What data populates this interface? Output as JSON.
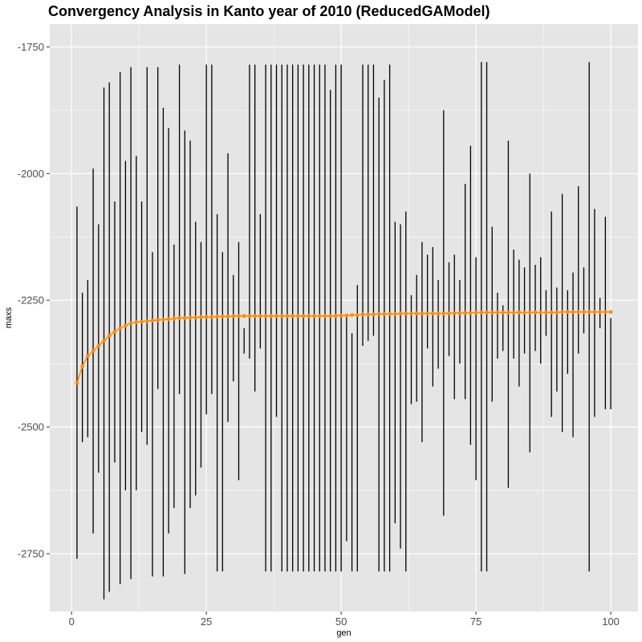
{
  "chart_data": {
    "type": "line",
    "title": "Convergency Analysis in  Kanto year of 2010 (ReducedGAModel)",
    "xlabel": "gen",
    "ylabel": "maxs",
    "xlim": [
      -4.05,
      105.05
    ],
    "ylim": [
      -2864,
      -1705
    ],
    "x_ticks": [
      0,
      25,
      50,
      75,
      100
    ],
    "y_ticks": [
      -1750,
      -2000,
      -2250,
      -2500,
      -2750
    ],
    "grid": true,
    "legend": "none",
    "colors": {
      "panel_background": "#e5e5e5",
      "grid": "#ffffff",
      "line": "#ff8c00",
      "error_bar": "#000000"
    },
    "gen": [
      1,
      2,
      3,
      4,
      5,
      6,
      7,
      8,
      9,
      10,
      11,
      12,
      13,
      14,
      15,
      16,
      17,
      18,
      19,
      20,
      21,
      22,
      23,
      24,
      25,
      26,
      27,
      28,
      29,
      30,
      31,
      32,
      33,
      34,
      35,
      36,
      37,
      38,
      39,
      40,
      41,
      42,
      43,
      44,
      45,
      46,
      47,
      48,
      49,
      50,
      51,
      52,
      53,
      54,
      55,
      56,
      57,
      58,
      59,
      60,
      61,
      62,
      63,
      64,
      65,
      66,
      67,
      68,
      69,
      70,
      71,
      72,
      73,
      74,
      75,
      76,
      77,
      78,
      79,
      80,
      81,
      82,
      83,
      84,
      85,
      86,
      87,
      88,
      89,
      90,
      91,
      92,
      93,
      94,
      95,
      96,
      97,
      98,
      99,
      100
    ],
    "mean": [
      -2413,
      -2380,
      -2360,
      -2350,
      -2340,
      -2330,
      -2320,
      -2312,
      -2305,
      -2300,
      -2295,
      -2293,
      -2292,
      -2291,
      -2290,
      -2289,
      -2288,
      -2287,
      -2286,
      -2285,
      -2285,
      -2284,
      -2284,
      -2283,
      -2283,
      -2283,
      -2282,
      -2282,
      -2282,
      -2281,
      -2281,
      -2281,
      -2281,
      -2281,
      -2281,
      -2281,
      -2281,
      -2281,
      -2281,
      -2281,
      -2281,
      -2281,
      -2281,
      -2281,
      -2281,
      -2281,
      -2281,
      -2281,
      -2281,
      -2280,
      -2280,
      -2279,
      -2279,
      -2278,
      -2278,
      -2278,
      -2277,
      -2277,
      -2277,
      -2277,
      -2276,
      -2276,
      -2276,
      -2276,
      -2276,
      -2276,
      -2276,
      -2276,
      -2276,
      -2276,
      -2275,
      -2275,
      -2275,
      -2275,
      -2274,
      -2274,
      -2274,
      -2274,
      -2274,
      -2274,
      -2274,
      -2274,
      -2274,
      -2274,
      -2274,
      -2274,
      -2274,
      -2274,
      -2274,
      -2274,
      -2273,
      -2273,
      -2273,
      -2273,
      -2273,
      -2273,
      -2273,
      -2273,
      -2273,
      -2273
    ],
    "max": [
      -2065,
      -2235,
      -2210,
      -1990,
      -2100,
      -1830,
      -1820,
      -2055,
      -1800,
      -1975,
      -1790,
      -1965,
      -2055,
      -1790,
      -2155,
      -1790,
      -1870,
      -1910,
      -2140,
      -1785,
      -1915,
      -1935,
      -2095,
      -2135,
      -1785,
      -1785,
      -2080,
      -2155,
      -1960,
      -2200,
      -2135,
      -2305,
      -1785,
      -1785,
      -2080,
      -1785,
      -1785,
      -1785,
      -1785,
      -1785,
      -1785,
      -1785,
      -1785,
      -1785,
      -1785,
      -1785,
      -1785,
      -1835,
      -1785,
      -1785,
      -2280,
      -2315,
      -2220,
      -1785,
      -1785,
      -1785,
      -1850,
      -1815,
      -1785,
      -2095,
      -2100,
      -2075,
      -2240,
      -2200,
      -2135,
      -2160,
      -2145,
      -2210,
      -1875,
      -2175,
      -2160,
      -2210,
      -2020,
      -1945,
      -2165,
      -1780,
      -1780,
      -2105,
      -2235,
      -2260,
      -1935,
      -2150,
      -2170,
      -2185,
      -2000,
      -2180,
      -2165,
      -2230,
      -2075,
      -2225,
      -2040,
      -2230,
      -2195,
      -2025,
      -2185,
      -1780,
      -2070,
      -2245,
      -2085,
      -2285
    ],
    "min": [
      -2760,
      -2530,
      -2520,
      -2710,
      -2590,
      -2840,
      -2825,
      -2570,
      -2810,
      -2625,
      -2800,
      -2625,
      -2510,
      -2535,
      -2795,
      -2425,
      -2795,
      -2710,
      -2660,
      -2435,
      -2790,
      -2660,
      -2635,
      -2580,
      -2475,
      -2435,
      -2785,
      -2785,
      -2490,
      -2410,
      -2605,
      -2355,
      -2365,
      -2430,
      -2345,
      -2785,
      -2785,
      -2480,
      -2785,
      -2785,
      -2785,
      -2785,
      -2785,
      -2785,
      -2785,
      -2785,
      -2785,
      -2785,
      -2785,
      -2785,
      -2725,
      -2785,
      -2785,
      -2340,
      -2330,
      -2320,
      -2785,
      -2785,
      -2785,
      -2690,
      -2740,
      -2785,
      -2455,
      -2450,
      -2530,
      -2345,
      -2420,
      -2385,
      -2675,
      -2360,
      -2445,
      -2375,
      -2445,
      -2535,
      -2605,
      -2785,
      -2785,
      -2450,
      -2365,
      -2350,
      -2620,
      -2365,
      -2420,
      -2355,
      -2550,
      -2350,
      -2375,
      -2320,
      -2480,
      -2430,
      -2510,
      -2395,
      -2520,
      -2355,
      -2315,
      -2785,
      -2480,
      -2305,
      -2465,
      -2465
    ]
  }
}
